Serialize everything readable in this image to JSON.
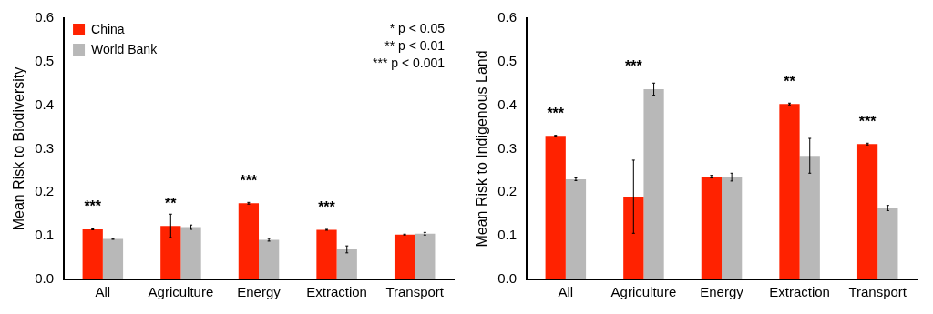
{
  "chart_data": [
    {
      "type": "bar",
      "ylabel": "Mean Risk to Biodiversity",
      "categories": [
        "All",
        "Agriculture",
        "Energy",
        "Extraction",
        "Transport"
      ],
      "series": [
        {
          "name": "China",
          "color": "#ff2200",
          "values": [
            0.115,
            0.123,
            0.175,
            0.114,
            0.103
          ],
          "errors": [
            0.001,
            0.027,
            0.002,
            0.001,
            0.001
          ]
        },
        {
          "name": "World Bank",
          "color": "#b8b8b8",
          "values": [
            0.093,
            0.12,
            0.091,
            0.069,
            0.105
          ],
          "errors": [
            0.001,
            0.005,
            0.003,
            0.008,
            0.003
          ]
        }
      ],
      "ylim": [
        0,
        0.6
      ],
      "yticks": [
        {
          "value": 0,
          "label": "0.0"
        },
        0.1,
        0.2,
        0.3,
        0.4,
        0.5,
        0.6
      ],
      "grid": false,
      "legend": "top left",
      "annotations": [
        "* p < 0.05",
        "** p < 0.01",
        "*** p < 0.001",
        {
          "text": "***",
          "x": "All",
          "y": 0.115
        },
        {
          "text": "**",
          "x": "Agriculture",
          "y": 0.123
        },
        {
          "text": "***",
          "x": "Energy",
          "y": 0.175
        },
        {
          "text": "***",
          "x": "Extraction",
          "y": 0.114
        }
      ]
    },
    {
      "type": "bar",
      "ylabel": "Mean Risk to Indigenous Land",
      "categories": [
        "All",
        "Agriculture",
        "Energy",
        "Extraction",
        "Transport"
      ],
      "series": [
        {
          "color": "#ff2200",
          "values": [
            0.33,
            0.19,
            0.236,
            0.403,
            0.311
          ],
          "errors": [
            0.001,
            0.084,
            0.003,
            0.002,
            0.002
          ]
        },
        {
          "color": "#b8b8b8",
          "values": [
            0.23,
            0.437,
            0.235,
            0.284,
            0.164
          ],
          "errors": [
            0.003,
            0.014,
            0.009,
            0.04,
            0.006
          ]
        }
      ],
      "ylim": [
        0,
        0.6
      ],
      "yticks": [
        {
          "value": 0,
          "label": "0.0"
        },
        0.1,
        0.2,
        0.3,
        0.4,
        0.5,
        0.6
      ],
      "grid": false,
      "annotations": [
        {
          "text": "***",
          "x": "All",
          "y": 0.33
        },
        {
          "text": "***",
          "x": "Agriculture",
          "y": 0.437
        },
        {
          "text": "**",
          "x": "Extraction",
          "y": 0.403
        },
        {
          "text": "***",
          "x": "Transport",
          "y": 0.311
        }
      ]
    }
  ]
}
